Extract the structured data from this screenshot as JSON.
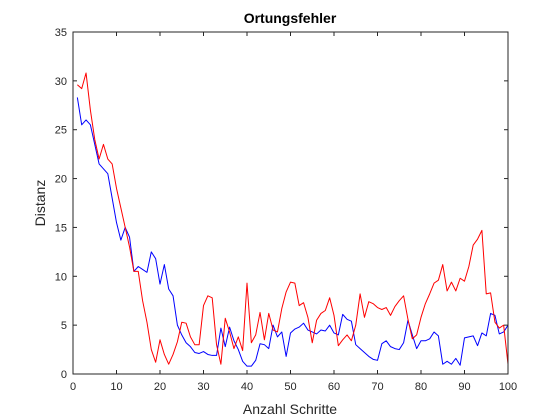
{
  "chart_data": {
    "type": "line",
    "title": "Ortungsfehler",
    "xlabel": "Anzahl Schritte",
    "ylabel": "Distanz",
    "xlim": [
      0,
      100
    ],
    "ylim": [
      0,
      35
    ],
    "xticks": [
      0,
      10,
      20,
      30,
      40,
      50,
      60,
      70,
      80,
      90,
      100
    ],
    "yticks": [
      0,
      5,
      10,
      15,
      20,
      25,
      30,
      35
    ],
    "grid": false,
    "legend": "none",
    "series": [
      {
        "color": "#0000ff",
        "points": [
          [
            1,
            28.3
          ],
          [
            2,
            25.5
          ],
          [
            3,
            26.0
          ],
          [
            4,
            25.5
          ],
          [
            5,
            23.5
          ],
          [
            6,
            21.5
          ],
          [
            7,
            21.0
          ],
          [
            8,
            20.5
          ],
          [
            9,
            18.0
          ],
          [
            10,
            15.5
          ],
          [
            11,
            13.7
          ],
          [
            12,
            15.0
          ],
          [
            13,
            14.0
          ],
          [
            14,
            10.5
          ],
          [
            15,
            11.0
          ],
          [
            16,
            10.7
          ],
          [
            17,
            10.4
          ],
          [
            18,
            12.5
          ],
          [
            19,
            11.8
          ],
          [
            20,
            9.2
          ],
          [
            21,
            11.2
          ],
          [
            22,
            8.7
          ],
          [
            23,
            8.0
          ],
          [
            24,
            5.0
          ],
          [
            25,
            4.0
          ],
          [
            26,
            3.2
          ],
          [
            27,
            2.8
          ],
          [
            28,
            2.2
          ],
          [
            29,
            2.1
          ],
          [
            30,
            2.3
          ],
          [
            31,
            2.0
          ],
          [
            32,
            1.9
          ],
          [
            33,
            1.9
          ],
          [
            34,
            4.7
          ],
          [
            35,
            2.8
          ],
          [
            36,
            4.8
          ],
          [
            37,
            3.4
          ],
          [
            38,
            2.5
          ],
          [
            39,
            1.3
          ],
          [
            40,
            0.8
          ],
          [
            41,
            0.8
          ],
          [
            42,
            1.4
          ],
          [
            43,
            3.1
          ],
          [
            44,
            3.0
          ],
          [
            45,
            2.6
          ],
          [
            46,
            5.0
          ],
          [
            47,
            3.8
          ],
          [
            48,
            4.3
          ],
          [
            49,
            1.8
          ],
          [
            50,
            4.2
          ],
          [
            51,
            4.6
          ],
          [
            52,
            4.8
          ],
          [
            53,
            5.2
          ],
          [
            54,
            4.5
          ],
          [
            55,
            4.3
          ],
          [
            56,
            4.1
          ],
          [
            57,
            4.5
          ],
          [
            58,
            4.4
          ],
          [
            59,
            5.0
          ],
          [
            60,
            4.2
          ],
          [
            61,
            4.0
          ],
          [
            62,
            6.1
          ],
          [
            63,
            5.6
          ],
          [
            64,
            5.4
          ],
          [
            65,
            3.0
          ],
          [
            66,
            2.6
          ],
          [
            67,
            2.2
          ],
          [
            68,
            1.8
          ],
          [
            69,
            1.5
          ],
          [
            70,
            1.4
          ],
          [
            71,
            3.1
          ],
          [
            72,
            3.4
          ],
          [
            73,
            2.8
          ],
          [
            74,
            2.6
          ],
          [
            75,
            2.5
          ],
          [
            76,
            3.2
          ],
          [
            77,
            5.5
          ],
          [
            78,
            4.0
          ],
          [
            79,
            2.6
          ],
          [
            80,
            3.4
          ],
          [
            81,
            3.4
          ],
          [
            82,
            3.6
          ],
          [
            83,
            4.3
          ],
          [
            84,
            3.9
          ],
          [
            85,
            1.0
          ],
          [
            86,
            1.3
          ],
          [
            87,
            1.0
          ],
          [
            88,
            1.6
          ],
          [
            89,
            0.9
          ],
          [
            90,
            3.7
          ],
          [
            91,
            3.8
          ],
          [
            92,
            3.9
          ],
          [
            93,
            2.9
          ],
          [
            94,
            4.2
          ],
          [
            95,
            3.9
          ],
          [
            96,
            6.2
          ],
          [
            97,
            6.0
          ],
          [
            98,
            4.1
          ],
          [
            99,
            4.3
          ],
          [
            100,
            5.0
          ],
          [
            101,
            5.3
          ]
        ]
      },
      {
        "color": "#ff0000",
        "points": [
          [
            1,
            29.6
          ],
          [
            2,
            29.2
          ],
          [
            3,
            30.8
          ],
          [
            4,
            27.0
          ],
          [
            5,
            24.0
          ],
          [
            6,
            22.0
          ],
          [
            7,
            23.5
          ],
          [
            8,
            22.0
          ],
          [
            9,
            21.5
          ],
          [
            10,
            19.0
          ],
          [
            11,
            17.0
          ],
          [
            12,
            15.0
          ],
          [
            13,
            13.0
          ],
          [
            14,
            10.5
          ],
          [
            15,
            10.5
          ],
          [
            16,
            7.5
          ],
          [
            17,
            5.3
          ],
          [
            18,
            2.5
          ],
          [
            19,
            1.2
          ],
          [
            20,
            3.5
          ],
          [
            21,
            2.0
          ],
          [
            22,
            1.0
          ],
          [
            23,
            2.0
          ],
          [
            24,
            3.3
          ],
          [
            25,
            5.3
          ],
          [
            26,
            5.2
          ],
          [
            27,
            3.8
          ],
          [
            28,
            3.0
          ],
          [
            29,
            3.0
          ],
          [
            30,
            7.0
          ],
          [
            31,
            8.0
          ],
          [
            32,
            7.8
          ],
          [
            33,
            3.0
          ],
          [
            34,
            1.0
          ],
          [
            35,
            5.7
          ],
          [
            36,
            4.3
          ],
          [
            37,
            2.6
          ],
          [
            38,
            3.8
          ],
          [
            39,
            2.4
          ],
          [
            40,
            9.3
          ],
          [
            41,
            3.2
          ],
          [
            42,
            4.0
          ],
          [
            43,
            6.3
          ],
          [
            44,
            3.5
          ],
          [
            45,
            6.2
          ],
          [
            46,
            4.5
          ],
          [
            47,
            4.3
          ],
          [
            48,
            6.7
          ],
          [
            49,
            8.4
          ],
          [
            50,
            9.4
          ],
          [
            51,
            9.3
          ],
          [
            52,
            7.0
          ],
          [
            53,
            7.3
          ],
          [
            54,
            5.8
          ],
          [
            55,
            3.2
          ],
          [
            56,
            5.5
          ],
          [
            57,
            6.2
          ],
          [
            58,
            6.5
          ],
          [
            59,
            7.8
          ],
          [
            60,
            6.0
          ],
          [
            61,
            2.9
          ],
          [
            62,
            3.5
          ],
          [
            63,
            4.0
          ],
          [
            64,
            3.4
          ],
          [
            65,
            5.0
          ],
          [
            66,
            8.2
          ],
          [
            67,
            5.8
          ],
          [
            68,
            7.4
          ],
          [
            69,
            7.2
          ],
          [
            70,
            6.8
          ],
          [
            71,
            6.6
          ],
          [
            72,
            6.8
          ],
          [
            73,
            6.0
          ],
          [
            74,
            6.9
          ],
          [
            75,
            7.5
          ],
          [
            76,
            8.0
          ],
          [
            77,
            5.6
          ],
          [
            78,
            3.6
          ],
          [
            79,
            4.0
          ],
          [
            80,
            5.8
          ],
          [
            81,
            7.2
          ],
          [
            82,
            8.2
          ],
          [
            83,
            9.3
          ],
          [
            84,
            9.6
          ],
          [
            85,
            11.2
          ],
          [
            86,
            8.5
          ],
          [
            87,
            9.4
          ],
          [
            88,
            8.5
          ],
          [
            89,
            9.8
          ],
          [
            90,
            9.5
          ],
          [
            91,
            11.0
          ],
          [
            92,
            13.2
          ],
          [
            93,
            13.8
          ],
          [
            94,
            14.7
          ],
          [
            95,
            8.2
          ],
          [
            96,
            8.3
          ],
          [
            97,
            5.3
          ],
          [
            98,
            4.7
          ],
          [
            99,
            5.0
          ],
          [
            100,
            1.0
          ],
          [
            101,
            0.4
          ]
        ]
      }
    ]
  }
}
